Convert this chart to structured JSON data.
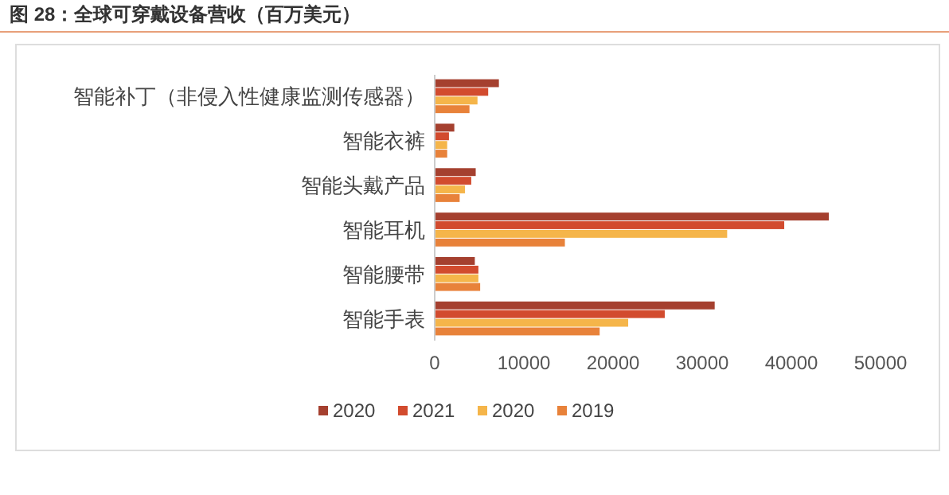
{
  "chart_data": {
    "type": "bar",
    "orientation": "horizontal",
    "title": "图 28：全球可穿戴设备营收（百万美元）",
    "categories": [
      "智能补丁（非侵入性健康监测传感器）",
      "智能衣裤",
      "智能头戴产品",
      "智能耳机",
      "智能腰带",
      "智能手表"
    ],
    "series": [
      {
        "name": "2020",
        "color": "#a5402f",
        "values": [
          7200,
          2200,
          4600,
          44200,
          4500,
          31400
        ]
      },
      {
        "name": "2021",
        "color": "#d24b2e",
        "values": [
          6000,
          1600,
          4100,
          39200,
          4900,
          25800
        ]
      },
      {
        "name": "2020",
        "color": "#f5b54a",
        "values": [
          4800,
          1400,
          3400,
          32800,
          4900,
          21700
        ]
      },
      {
        "name": "2019",
        "color": "#e8823a",
        "values": [
          3900,
          1400,
          2800,
          14600,
          5100,
          18500
        ]
      }
    ],
    "xlim": [
      0,
      50000
    ],
    "xticks": [
      0,
      10000,
      20000,
      30000,
      40000,
      50000
    ],
    "grid": false,
    "legend": "bottom"
  }
}
